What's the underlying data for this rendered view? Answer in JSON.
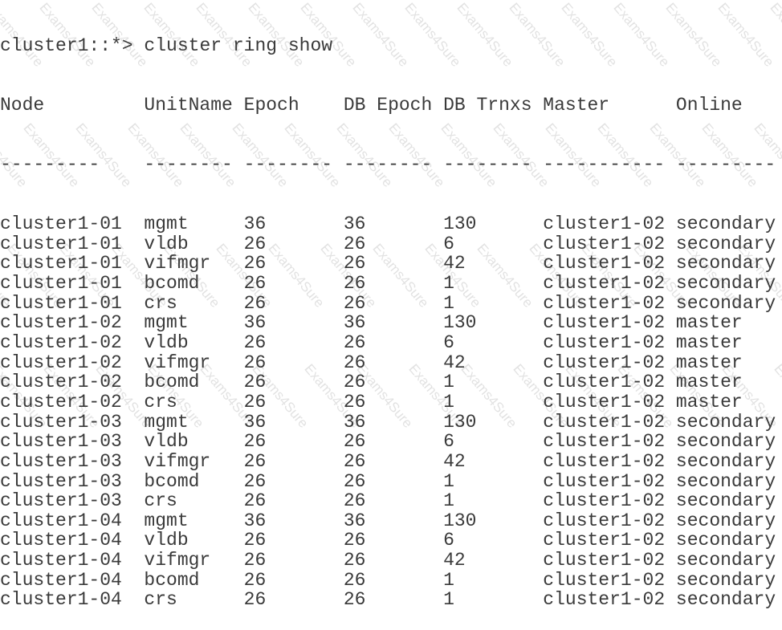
{
  "prompt": "cluster1::*> cluster ring show",
  "watermark": "Exams4Sure",
  "columns": [
    "Node",
    "UnitName",
    "Epoch",
    "DB Epoch",
    "DB Trnxs",
    "Master",
    "Online"
  ],
  "separators": [
    "---------",
    "--------",
    "--------",
    "--------",
    "--------",
    "-----------",
    "---------"
  ],
  "rows": [
    [
      "cluster1-01",
      "mgmt",
      "36",
      "36",
      "130",
      "cluster1-02",
      "secondary"
    ],
    [
      "cluster1-01",
      "vldb",
      "26",
      "26",
      "6",
      "cluster1-02",
      "secondary"
    ],
    [
      "cluster1-01",
      "vifmgr",
      "26",
      "26",
      "42",
      "cluster1-02",
      "secondary"
    ],
    [
      "cluster1-01",
      "bcomd",
      "26",
      "26",
      "1",
      "cluster1-02",
      "secondary"
    ],
    [
      "cluster1-01",
      "crs",
      "26",
      "26",
      "1",
      "cluster1-02",
      "secondary"
    ],
    [
      "cluster1-02",
      "mgmt",
      "36",
      "36",
      "130",
      "cluster1-02",
      "master"
    ],
    [
      "cluster1-02",
      "vldb",
      "26",
      "26",
      "6",
      "cluster1-02",
      "master"
    ],
    [
      "cluster1-02",
      "vifmgr",
      "26",
      "26",
      "42",
      "cluster1-02",
      "master"
    ],
    [
      "cluster1-02",
      "bcomd",
      "26",
      "26",
      "1",
      "cluster1-02",
      "master"
    ],
    [
      "cluster1-02",
      "crs",
      "26",
      "26",
      "1",
      "cluster1-02",
      "master"
    ],
    [
      "cluster1-03",
      "mgmt",
      "36",
      "36",
      "130",
      "cluster1-02",
      "secondary"
    ],
    [
      "cluster1-03",
      "vldb",
      "26",
      "26",
      "6",
      "cluster1-02",
      "secondary"
    ],
    [
      "cluster1-03",
      "vifmgr",
      "26",
      "26",
      "42",
      "cluster1-02",
      "secondary"
    ],
    [
      "cluster1-03",
      "bcomd",
      "26",
      "26",
      "1",
      "cluster1-02",
      "secondary"
    ],
    [
      "cluster1-03",
      "crs",
      "26",
      "26",
      "1",
      "cluster1-02",
      "secondary"
    ],
    [
      "cluster1-04",
      "mgmt",
      "36",
      "36",
      "130",
      "cluster1-02",
      "secondary"
    ],
    [
      "cluster1-04",
      "vldb",
      "26",
      "26",
      "6",
      "cluster1-02",
      "secondary"
    ],
    [
      "cluster1-04",
      "vifmgr",
      "26",
      "26",
      "42",
      "cluster1-02",
      "secondary"
    ],
    [
      "cluster1-04",
      "bcomd",
      "26",
      "26",
      "1",
      "cluster1-02",
      "secondary"
    ],
    [
      "cluster1-04",
      "crs",
      "26",
      "26",
      "1",
      "cluster1-02",
      "secondary"
    ]
  ]
}
